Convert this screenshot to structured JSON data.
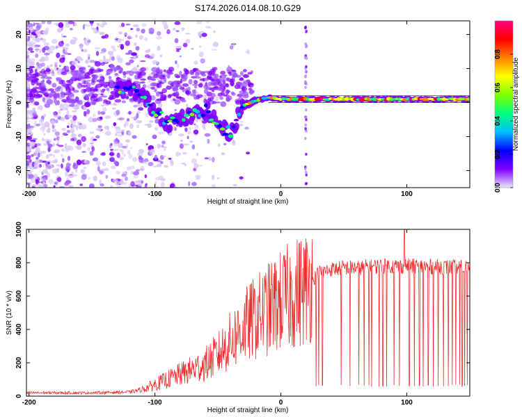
{
  "title": "S174.2026.014.08.10.G29",
  "chart_data": [
    {
      "type": "heatmap",
      "name": "spectrogram",
      "xlabel": "Height of straight line (km)",
      "ylabel": "Frequency (Hz)",
      "xlim": [
        -202,
        150
      ],
      "ylim": [
        -25,
        24
      ],
      "xticks": [
        -200,
        -100,
        0,
        100
      ],
      "yticks": [
        -20,
        -10,
        0,
        10,
        20
      ],
      "ridge": [
        [
          -130,
          4
        ],
        [
          -120,
          4
        ],
        [
          -110,
          2
        ],
        [
          -100,
          -2
        ],
        [
          -95,
          -4
        ],
        [
          -90,
          -6
        ],
        [
          -80,
          -5
        ],
        [
          -70,
          -4
        ],
        [
          -60,
          -2
        ],
        [
          -55,
          -4
        ],
        [
          -50,
          -6
        ],
        [
          -45,
          -8
        ],
        [
          -40,
          -9
        ],
        [
          -35,
          -5
        ],
        [
          -30,
          -1
        ],
        [
          -20,
          0.5
        ],
        [
          -10,
          1.5
        ],
        [
          0,
          1
        ],
        [
          10,
          1
        ],
        [
          20,
          1
        ],
        [
          40,
          1
        ],
        [
          60,
          1
        ],
        [
          80,
          1
        ],
        [
          100,
          1
        ],
        [
          120,
          1
        ],
        [
          150,
          1
        ]
      ],
      "colorbar": {
        "label": "Normalized spectral amplitude",
        "ticks": [
          0.0,
          0.2,
          0.4,
          0.6,
          0.8
        ],
        "tick_labels": [
          "0.0",
          "0.2",
          "0.4",
          "0.6",
          "0.8"
        ],
        "range": [
          0,
          1
        ],
        "colors": [
          "#e6e6fa",
          "#7f00ff",
          "#0000ff",
          "#00bfff",
          "#00ff80",
          "#7fff00",
          "#ffff00",
          "#ff8000",
          "#ff0000",
          "#ff0080"
        ]
      }
    },
    {
      "type": "line",
      "name": "snr",
      "xlabel": "Height of straight line (km)",
      "ylabel": "SNR (10 * v/v)",
      "xlim": [
        -202,
        150
      ],
      "ylim": [
        0,
        1000
      ],
      "xticks": [
        -200,
        -100,
        0,
        100
      ],
      "yticks": [
        0,
        200,
        400,
        600,
        800,
        1000
      ],
      "color": "#ee2c2c",
      "trend": [
        [
          -200,
          20
        ],
        [
          -150,
          20
        ],
        [
          -120,
          25
        ],
        [
          -110,
          40
        ],
        [
          -100,
          70
        ],
        [
          -90,
          100
        ],
        [
          -80,
          130
        ],
        [
          -70,
          160
        ],
        [
          -60,
          190
        ],
        [
          -50,
          250
        ],
        [
          -40,
          330
        ],
        [
          -30,
          410
        ],
        [
          -20,
          470
        ],
        [
          -10,
          520
        ],
        [
          0,
          570
        ],
        [
          10,
          610
        ],
        [
          20,
          650
        ],
        [
          30,
          740
        ],
        [
          40,
          760
        ],
        [
          50,
          770
        ],
        [
          60,
          770
        ],
        [
          80,
          780
        ],
        [
          100,
          780
        ],
        [
          150,
          770
        ]
      ],
      "drops": [
        28,
        30,
        33,
        48,
        55,
        62,
        66,
        70,
        72,
        78,
        81,
        84,
        90,
        94,
        98,
        102,
        106,
        110,
        113,
        117,
        121,
        125,
        129,
        133,
        136,
        139,
        142,
        144,
        146,
        148
      ],
      "peak": [
        98,
        1000
      ]
    }
  ]
}
